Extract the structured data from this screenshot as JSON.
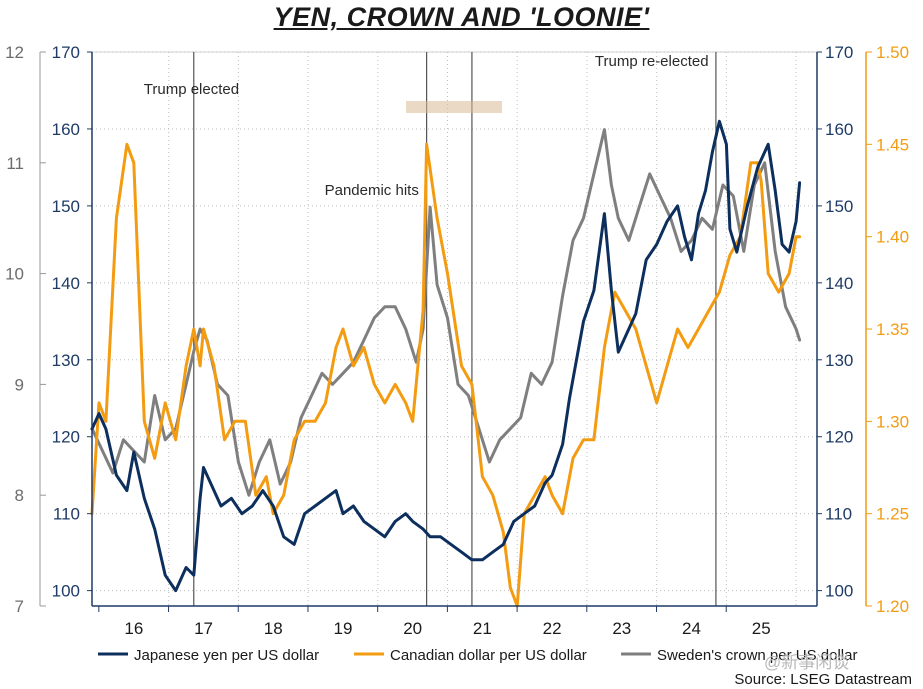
{
  "chart_data": {
    "type": "line",
    "title": "YEN, CROWN AND 'LOONIE'",
    "source": "Source: LSEG Datastream",
    "watermark": "@新事闲谈",
    "colors": {
      "yen": "#0d2f5e",
      "cad": "#f39c12",
      "sek": "#7f7f7f",
      "sek_axis": "#6d6d6d",
      "axis_navy": "#1f3b66"
    },
    "x_axis": {
      "range": [
        2015.4,
        2025.8
      ],
      "ticks": [
        2016,
        2017,
        2018,
        2019,
        2020,
        2021,
        2022,
        2023,
        2024,
        2025
      ],
      "tick_labels": [
        "16",
        "17",
        "18",
        "19",
        "20",
        "21",
        "22",
        "23",
        "24",
        "25"
      ]
    },
    "axes": {
      "yen_left": {
        "range": [
          98,
          170
        ],
        "ticks": [
          100,
          110,
          120,
          130,
          140,
          150,
          160,
          170
        ]
      },
      "sek_left": {
        "range": [
          7,
          12
        ],
        "ticks": [
          7,
          8,
          9,
          10,
          11,
          12
        ]
      },
      "yen_right": {
        "range": [
          98,
          170
        ],
        "ticks": [
          100,
          110,
          120,
          130,
          140,
          150,
          160,
          170
        ]
      },
      "cad_right": {
        "range": [
          1.2,
          1.5
        ],
        "ticks": [
          1.2,
          1.25,
          1.3,
          1.35,
          1.4,
          1.45,
          1.5
        ],
        "tick_labels": [
          "1.20",
          "1.25",
          "1.30",
          "1.35",
          "1.40",
          "1.45",
          "1.50"
        ]
      }
    },
    "events": [
      {
        "x": 2016.86,
        "label": "Trump elected"
      },
      {
        "x": 2020.2,
        "label": "Pandemic hits"
      },
      {
        "x": 2020.85,
        "label": ""
      },
      {
        "x": 2024.35,
        "label": "Trump re-elected"
      }
    ],
    "series": [
      {
        "name": "Japanese yen per US dollar",
        "axis": "yen",
        "color": "#0d2f5e",
        "x": [
          2015.4,
          2015.5,
          2015.6,
          2015.75,
          2015.9,
          2016.0,
          2016.15,
          2016.3,
          2016.45,
          2016.6,
          2016.75,
          2016.86,
          2016.95,
          2017.0,
          2017.1,
          2017.25,
          2017.4,
          2017.55,
          2017.7,
          2017.85,
          2018.0,
          2018.15,
          2018.3,
          2018.45,
          2018.6,
          2018.75,
          2018.9,
          2019.0,
          2019.15,
          2019.3,
          2019.45,
          2019.6,
          2019.75,
          2019.9,
          2020.0,
          2020.15,
          2020.25,
          2020.4,
          2020.55,
          2020.7,
          2020.85,
          2021.0,
          2021.15,
          2021.3,
          2021.45,
          2021.6,
          2021.75,
          2021.9,
          2022.0,
          2022.15,
          2022.25,
          2022.35,
          2022.45,
          2022.6,
          2022.75,
          2022.85,
          2022.95,
          2023.05,
          2023.2,
          2023.35,
          2023.5,
          2023.65,
          2023.8,
          2023.9,
          2024.0,
          2024.1,
          2024.2,
          2024.3,
          2024.4,
          2024.5,
          2024.55,
          2024.65,
          2024.8,
          2024.95,
          2025.1,
          2025.2,
          2025.3,
          2025.4,
          2025.5,
          2025.55
        ],
        "values": [
          121,
          123,
          121,
          115,
          113,
          118,
          112,
          108,
          102,
          100,
          103,
          102,
          112,
          116,
          114,
          111,
          112,
          110,
          111,
          113,
          111,
          107,
          106,
          110,
          111,
          112,
          113,
          110,
          111,
          109,
          108,
          107,
          109,
          110,
          109,
          108,
          107,
          107,
          106,
          105,
          104,
          104,
          105,
          106,
          109,
          110,
          111,
          114,
          115,
          119,
          125,
          130,
          135,
          139,
          149,
          139,
          131,
          133,
          136,
          143,
          145,
          148,
          150,
          146,
          143,
          149,
          152,
          157,
          161,
          158,
          147,
          144,
          150,
          155,
          158,
          152,
          145,
          144,
          148,
          153
        ]
      },
      {
        "name": "Canadian dollar per US dollar",
        "axis": "cad",
        "color": "#f39c12",
        "x": [
          2015.4,
          2015.5,
          2015.6,
          2015.75,
          2015.9,
          2016.0,
          2016.15,
          2016.3,
          2016.45,
          2016.6,
          2016.75,
          2016.86,
          2016.95,
          2017.0,
          2017.15,
          2017.3,
          2017.45,
          2017.6,
          2017.75,
          2017.9,
          2018.0,
          2018.15,
          2018.3,
          2018.45,
          2018.6,
          2018.75,
          2018.9,
          2019.0,
          2019.15,
          2019.3,
          2019.45,
          2019.6,
          2019.75,
          2019.9,
          2020.0,
          2020.15,
          2020.2,
          2020.35,
          2020.5,
          2020.7,
          2020.85,
          2021.0,
          2021.15,
          2021.3,
          2021.4,
          2021.5,
          2021.6,
          2021.75,
          2021.9,
          2022.0,
          2022.15,
          2022.3,
          2022.45,
          2022.6,
          2022.75,
          2022.9,
          2023.05,
          2023.2,
          2023.35,
          2023.5,
          2023.65,
          2023.8,
          2023.95,
          2024.1,
          2024.25,
          2024.4,
          2024.55,
          2024.7,
          2024.85,
          2024.95,
          2025.0,
          2025.1,
          2025.25,
          2025.4,
          2025.5,
          2025.55
        ],
        "values": [
          1.25,
          1.31,
          1.3,
          1.41,
          1.45,
          1.44,
          1.3,
          1.28,
          1.31,
          1.29,
          1.33,
          1.35,
          1.33,
          1.35,
          1.33,
          1.29,
          1.3,
          1.3,
          1.26,
          1.27,
          1.25,
          1.26,
          1.29,
          1.3,
          1.3,
          1.31,
          1.34,
          1.35,
          1.33,
          1.34,
          1.32,
          1.31,
          1.32,
          1.31,
          1.3,
          1.36,
          1.45,
          1.41,
          1.38,
          1.33,
          1.32,
          1.27,
          1.26,
          1.24,
          1.21,
          1.2,
          1.25,
          1.26,
          1.27,
          1.26,
          1.25,
          1.28,
          1.29,
          1.29,
          1.34,
          1.37,
          1.36,
          1.35,
          1.33,
          1.31,
          1.33,
          1.35,
          1.34,
          1.35,
          1.36,
          1.37,
          1.39,
          1.4,
          1.44,
          1.44,
          1.43,
          1.38,
          1.37,
          1.38,
          1.4,
          1.4
        ]
      },
      {
        "name": "Sweden's crown per US dollar",
        "axis": "sek",
        "color": "#7f7f7f",
        "x": [
          2015.4,
          2015.55,
          2015.7,
          2015.85,
          2016.0,
          2016.15,
          2016.3,
          2016.45,
          2016.6,
          2016.75,
          2016.86,
          2016.95,
          2017.05,
          2017.2,
          2017.35,
          2017.5,
          2017.65,
          2017.8,
          2017.95,
          2018.1,
          2018.25,
          2018.4,
          2018.55,
          2018.7,
          2018.85,
          2019.0,
          2019.15,
          2019.3,
          2019.45,
          2019.6,
          2019.75,
          2019.9,
          2020.05,
          2020.15,
          2020.25,
          2020.35,
          2020.5,
          2020.65,
          2020.8,
          2020.95,
          2021.1,
          2021.25,
          2021.4,
          2021.55,
          2021.7,
          2021.85,
          2022.0,
          2022.15,
          2022.3,
          2022.45,
          2022.6,
          2022.75,
          2022.85,
          2022.95,
          2023.1,
          2023.25,
          2023.4,
          2023.55,
          2023.7,
          2023.85,
          2024.0,
          2024.15,
          2024.3,
          2024.45,
          2024.6,
          2024.75,
          2024.9,
          2025.05,
          2025.2,
          2025.35,
          2025.5,
          2025.55
        ],
        "values": [
          8.6,
          8.4,
          8.2,
          8.5,
          8.4,
          8.3,
          8.9,
          8.5,
          8.6,
          9.0,
          9.3,
          9.5,
          9.4,
          9.0,
          8.9,
          8.3,
          8.0,
          8.3,
          8.5,
          8.1,
          8.3,
          8.7,
          8.9,
          9.1,
          9.0,
          9.1,
          9.2,
          9.4,
          9.6,
          9.7,
          9.7,
          9.5,
          9.2,
          9.5,
          10.6,
          9.9,
          9.6,
          9.0,
          8.9,
          8.6,
          8.3,
          8.5,
          8.6,
          8.7,
          9.1,
          9.0,
          9.2,
          9.8,
          10.3,
          10.5,
          10.9,
          11.3,
          10.8,
          10.5,
          10.3,
          10.6,
          10.9,
          10.7,
          10.5,
          10.2,
          10.3,
          10.5,
          10.4,
          10.8,
          10.7,
          10.2,
          10.8,
          11.0,
          10.2,
          9.7,
          9.5,
          9.4
        ]
      }
    ],
    "legend": [
      "Japanese yen per US dollar",
      "Canadian dollar per US dollar",
      "Sweden's crown per US dollar"
    ],
    "legend_position": "bottom"
  }
}
